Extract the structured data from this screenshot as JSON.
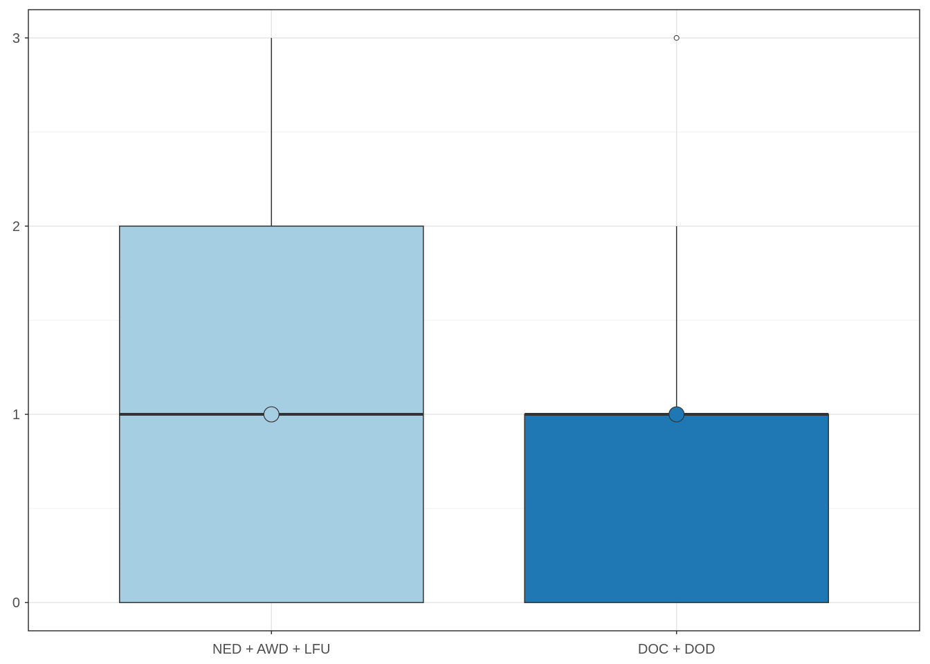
{
  "chart_data": {
    "type": "box",
    "title": "",
    "xlabel": "",
    "ylabel": "",
    "ylim": [
      -0.15,
      3.15
    ],
    "yticks": [
      0,
      1,
      2,
      3
    ],
    "grid": true,
    "legend": "none",
    "categories": [
      "NED + AWD + LFU",
      "DOC + DOD"
    ],
    "boxes": [
      {
        "category": "NED + AWD + LFU",
        "min": 0,
        "q1": 0,
        "median": 1,
        "q3": 2,
        "max": 3,
        "mean": 1.0,
        "outliers": [],
        "color": "#a6cee3"
      },
      {
        "category": "DOC + DOD",
        "min": 0,
        "q1": 0,
        "median": 1,
        "q3": 1,
        "max": 2,
        "mean": 1.0,
        "outliers": [
          3
        ],
        "color": "#1f78b4"
      }
    ]
  }
}
